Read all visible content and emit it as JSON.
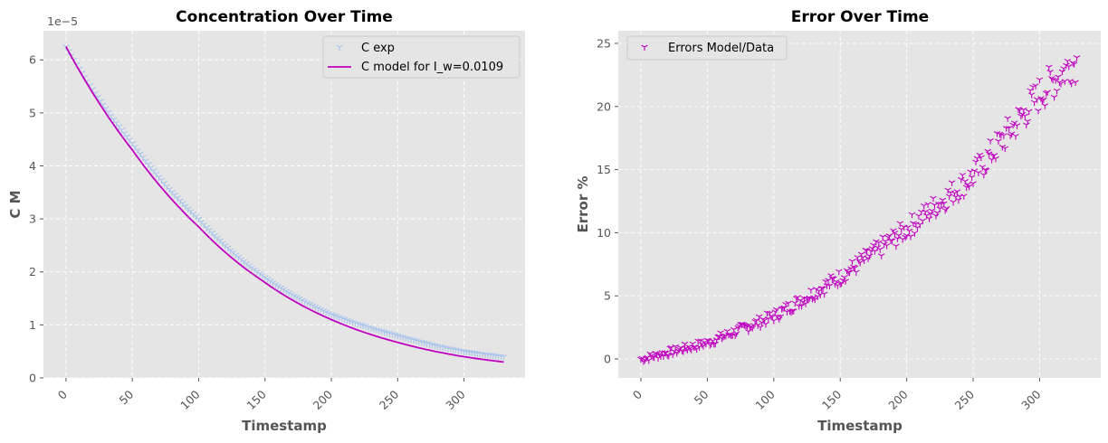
{
  "colors": {
    "panel_bg": "#E5E5E5",
    "c_exp": "#A9C3EC",
    "c_model": "#BF00BF",
    "errors": "#BF00BF"
  },
  "chart_data": [
    {
      "type": "scatter",
      "title": "Concentration Over Time",
      "xlabel": "Timestamp",
      "ylabel": "C M",
      "y_offset_text": "1e−5",
      "xlim": [
        -17,
        346
      ],
      "ylim": [
        0,
        6.55
      ],
      "xticks": [
        0,
        50,
        100,
        150,
        200,
        250,
        300
      ],
      "yticks": [
        0,
        1,
        2,
        3,
        4,
        5,
        6
      ],
      "grid": true,
      "legend_position": "upper right",
      "series": [
        {
          "name": "C exp",
          "kind": "scatter",
          "marker": "tri_down",
          "x_range": [
            0,
            330
          ],
          "x_step": 2,
          "formula_note": "Y-values follow a smooth decay from 6.25 at x=0 to ~0.40 at x=330.",
          "values_sampled": [
            {
              "x": 0,
              "y": 6.25
            },
            {
              "x": 50,
              "y": 4.43
            },
            {
              "x": 100,
              "y": 3.0
            },
            {
              "x": 150,
              "y": 1.9
            },
            {
              "x": 200,
              "y": 1.2
            },
            {
              "x": 250,
              "y": 0.8
            },
            {
              "x": 300,
              "y": 0.5
            },
            {
              "x": 330,
              "y": 0.4
            }
          ]
        },
        {
          "name": "C model for I_w=0.0109",
          "kind": "line",
          "values_sampled": [
            {
              "x": 0,
              "y": 6.25
            },
            {
              "x": 50,
              "y": 4.3
            },
            {
              "x": 100,
              "y": 2.85
            },
            {
              "x": 150,
              "y": 1.8
            },
            {
              "x": 200,
              "y": 1.1
            },
            {
              "x": 250,
              "y": 0.67
            },
            {
              "x": 300,
              "y": 0.4
            },
            {
              "x": 330,
              "y": 0.3
            }
          ]
        }
      ]
    },
    {
      "type": "scatter",
      "title": "Error Over Time",
      "xlabel": "Timestamp",
      "ylabel": "Error %",
      "xlim": [
        -17,
        346
      ],
      "ylim": [
        -1.5,
        26
      ],
      "xticks": [
        0,
        50,
        100,
        150,
        200,
        250,
        300
      ],
      "yticks": [
        0,
        5,
        10,
        15,
        20,
        25
      ],
      "grid": true,
      "legend_position": "upper left",
      "series": [
        {
          "name": "Errors Model/Data",
          "kind": "scatter",
          "marker": "tri_down",
          "x_range": [
            0,
            328
          ],
          "x_step": 1,
          "values_sampled": [
            {
              "x": 0,
              "y": 0.0
            },
            {
              "x": 50,
              "y": 1.3
            },
            {
              "x": 100,
              "y": 3.4
            },
            {
              "x": 150,
              "y": 6.5
            },
            {
              "x": 200,
              "y": 10.3
            },
            {
              "x": 250,
              "y": 14.5
            },
            {
              "x": 300,
              "y": 21.0
            },
            {
              "x": 325,
              "y": 23.5
            }
          ]
        }
      ]
    }
  ]
}
